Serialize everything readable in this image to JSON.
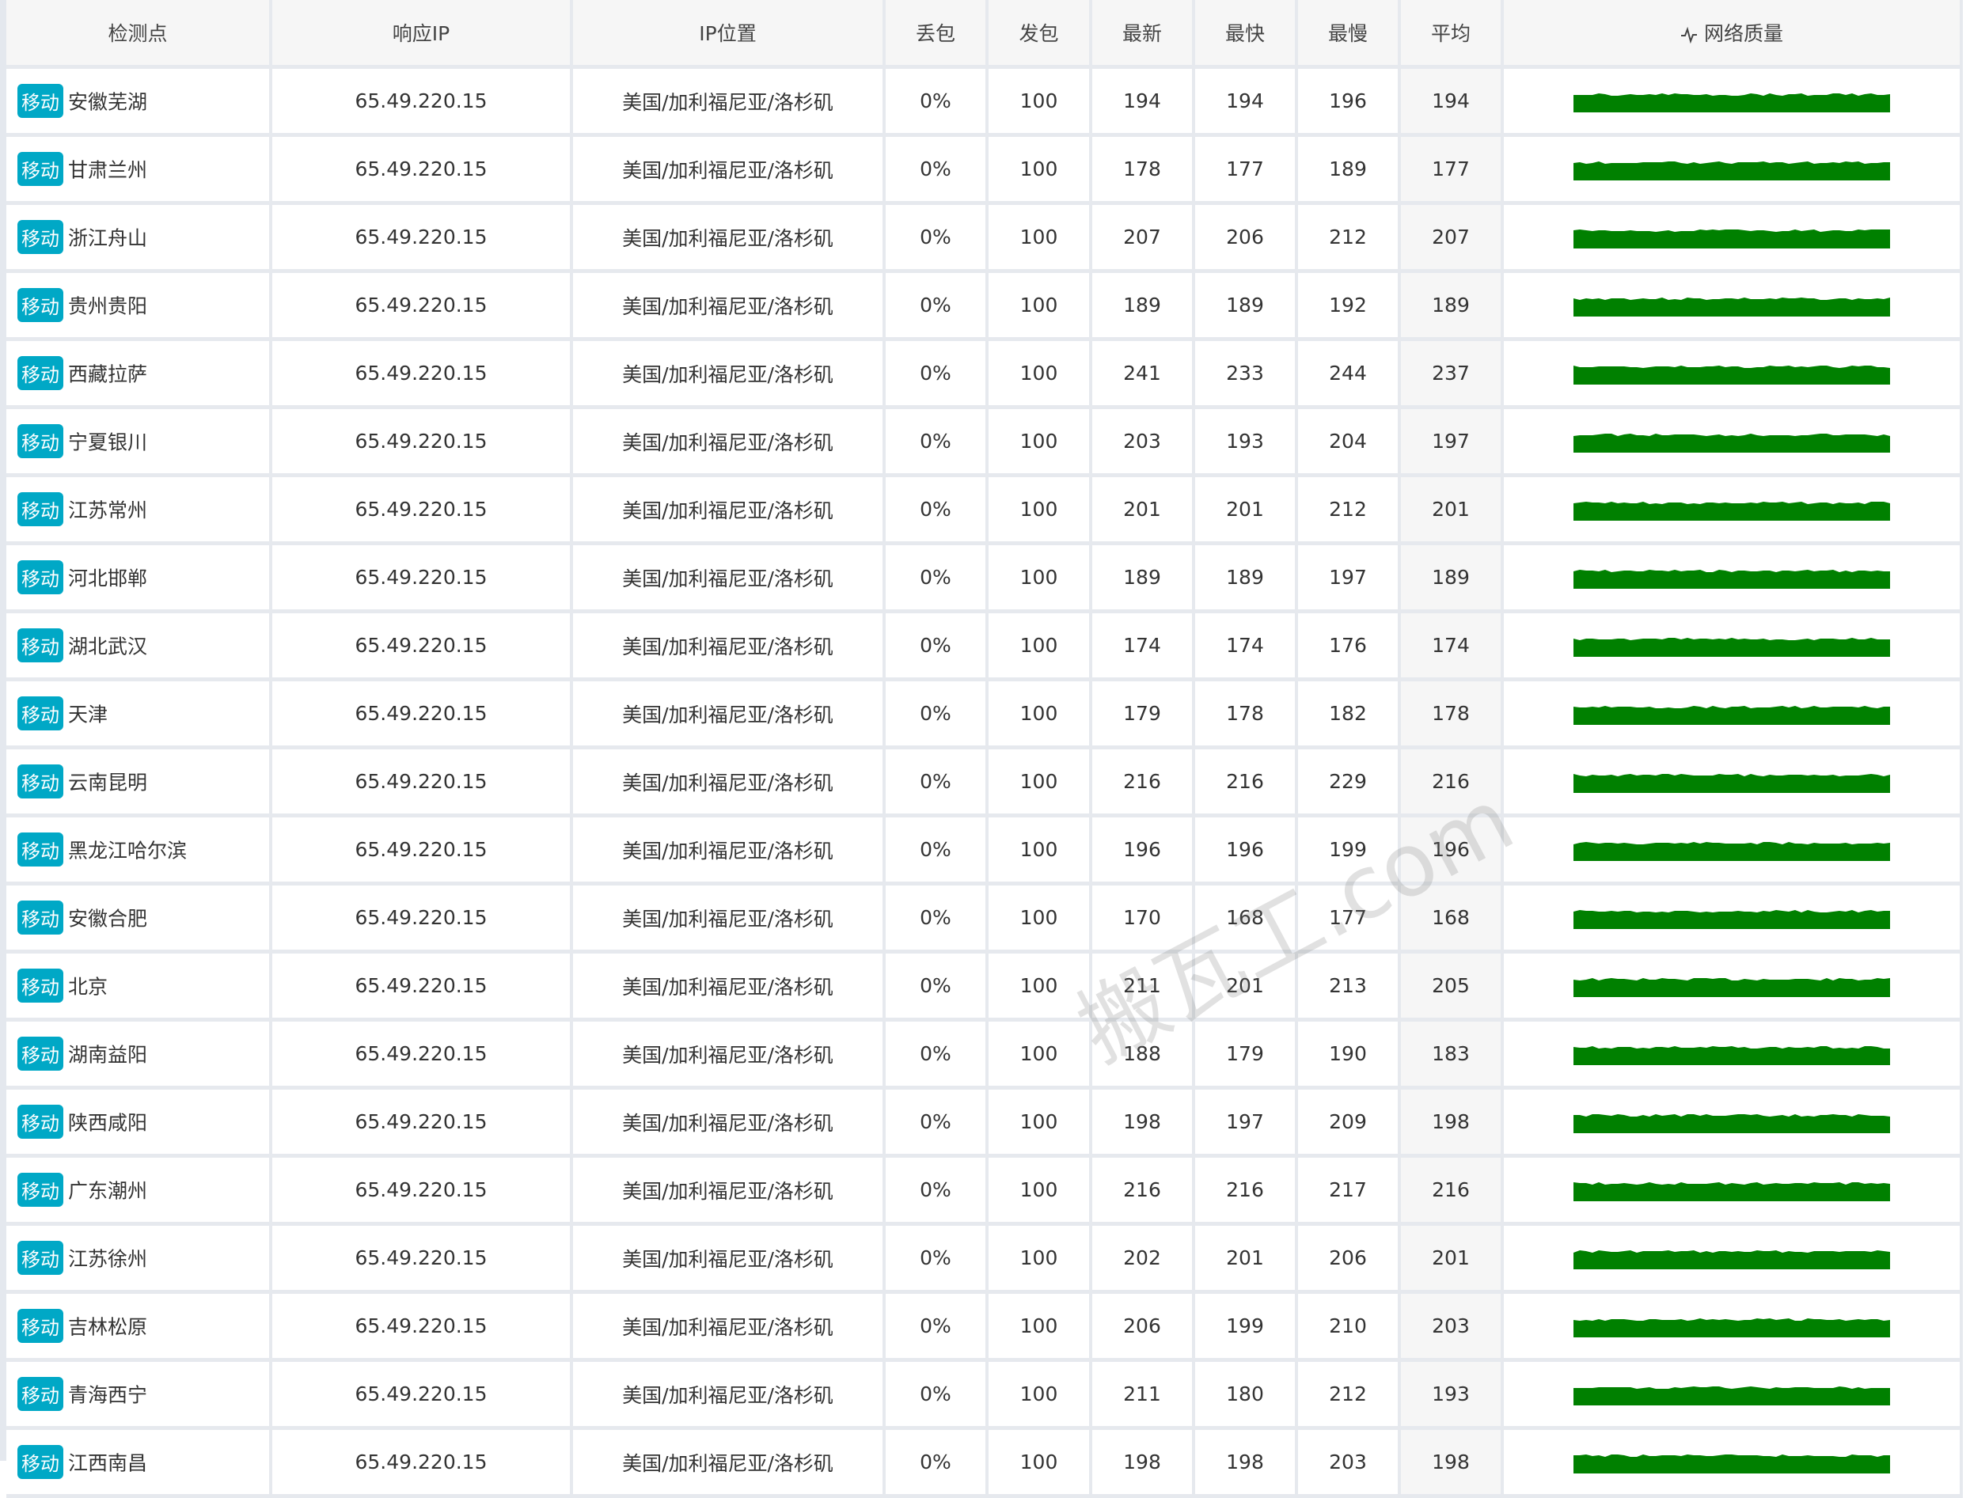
{
  "headers": [
    "检测点",
    "响应IP",
    "IP位置",
    "丢包",
    "发包",
    "最新",
    "最快",
    "最慢",
    "平均",
    "网络质量"
  ],
  "quality_icon": "pulse-icon",
  "badge_color": "#00a8c6",
  "bar_color": "#008000",
  "watermark": "搬瓦工.com",
  "rows": [
    {
      "isp": "移动",
      "loc": "安徽芜湖",
      "ip": "65.49.220.15",
      "geo": "美国/加利福尼亚/洛杉矶",
      "loss": "0%",
      "sent": "100",
      "last": "194",
      "best": "194",
      "worst": "196",
      "avg": "194"
    },
    {
      "isp": "移动",
      "loc": "甘肃兰州",
      "ip": "65.49.220.15",
      "geo": "美国/加利福尼亚/洛杉矶",
      "loss": "0%",
      "sent": "100",
      "last": "178",
      "best": "177",
      "worst": "189",
      "avg": "177"
    },
    {
      "isp": "移动",
      "loc": "浙江舟山",
      "ip": "65.49.220.15",
      "geo": "美国/加利福尼亚/洛杉矶",
      "loss": "0%",
      "sent": "100",
      "last": "207",
      "best": "206",
      "worst": "212",
      "avg": "207"
    },
    {
      "isp": "移动",
      "loc": "贵州贵阳",
      "ip": "65.49.220.15",
      "geo": "美国/加利福尼亚/洛杉矶",
      "loss": "0%",
      "sent": "100",
      "last": "189",
      "best": "189",
      "worst": "192",
      "avg": "189"
    },
    {
      "isp": "移动",
      "loc": "西藏拉萨",
      "ip": "65.49.220.15",
      "geo": "美国/加利福尼亚/洛杉矶",
      "loss": "0%",
      "sent": "100",
      "last": "241",
      "best": "233",
      "worst": "244",
      "avg": "237"
    },
    {
      "isp": "移动",
      "loc": "宁夏银川",
      "ip": "65.49.220.15",
      "geo": "美国/加利福尼亚/洛杉矶",
      "loss": "0%",
      "sent": "100",
      "last": "203",
      "best": "193",
      "worst": "204",
      "avg": "197"
    },
    {
      "isp": "移动",
      "loc": "江苏常州",
      "ip": "65.49.220.15",
      "geo": "美国/加利福尼亚/洛杉矶",
      "loss": "0%",
      "sent": "100",
      "last": "201",
      "best": "201",
      "worst": "212",
      "avg": "201"
    },
    {
      "isp": "移动",
      "loc": "河北邯郸",
      "ip": "65.49.220.15",
      "geo": "美国/加利福尼亚/洛杉矶",
      "loss": "0%",
      "sent": "100",
      "last": "189",
      "best": "189",
      "worst": "197",
      "avg": "189"
    },
    {
      "isp": "移动",
      "loc": "湖北武汉",
      "ip": "65.49.220.15",
      "geo": "美国/加利福尼亚/洛杉矶",
      "loss": "0%",
      "sent": "100",
      "last": "174",
      "best": "174",
      "worst": "176",
      "avg": "174"
    },
    {
      "isp": "移动",
      "loc": "天津",
      "ip": "65.49.220.15",
      "geo": "美国/加利福尼亚/洛杉矶",
      "loss": "0%",
      "sent": "100",
      "last": "179",
      "best": "178",
      "worst": "182",
      "avg": "178"
    },
    {
      "isp": "移动",
      "loc": "云南昆明",
      "ip": "65.49.220.15",
      "geo": "美国/加利福尼亚/洛杉矶",
      "loss": "0%",
      "sent": "100",
      "last": "216",
      "best": "216",
      "worst": "229",
      "avg": "216"
    },
    {
      "isp": "移动",
      "loc": "黑龙江哈尔滨",
      "ip": "65.49.220.15",
      "geo": "美国/加利福尼亚/洛杉矶",
      "loss": "0%",
      "sent": "100",
      "last": "196",
      "best": "196",
      "worst": "199",
      "avg": "196"
    },
    {
      "isp": "移动",
      "loc": "安徽合肥",
      "ip": "65.49.220.15",
      "geo": "美国/加利福尼亚/洛杉矶",
      "loss": "0%",
      "sent": "100",
      "last": "170",
      "best": "168",
      "worst": "177",
      "avg": "168"
    },
    {
      "isp": "移动",
      "loc": "北京",
      "ip": "65.49.220.15",
      "geo": "美国/加利福尼亚/洛杉矶",
      "loss": "0%",
      "sent": "100",
      "last": "211",
      "best": "201",
      "worst": "213",
      "avg": "205"
    },
    {
      "isp": "移动",
      "loc": "湖南益阳",
      "ip": "65.49.220.15",
      "geo": "美国/加利福尼亚/洛杉矶",
      "loss": "0%",
      "sent": "100",
      "last": "188",
      "best": "179",
      "worst": "190",
      "avg": "183"
    },
    {
      "isp": "移动",
      "loc": "陕西咸阳",
      "ip": "65.49.220.15",
      "geo": "美国/加利福尼亚/洛杉矶",
      "loss": "0%",
      "sent": "100",
      "last": "198",
      "best": "197",
      "worst": "209",
      "avg": "198"
    },
    {
      "isp": "移动",
      "loc": "广东潮州",
      "ip": "65.49.220.15",
      "geo": "美国/加利福尼亚/洛杉矶",
      "loss": "0%",
      "sent": "100",
      "last": "216",
      "best": "216",
      "worst": "217",
      "avg": "216"
    },
    {
      "isp": "移动",
      "loc": "江苏徐州",
      "ip": "65.49.220.15",
      "geo": "美国/加利福尼亚/洛杉矶",
      "loss": "0%",
      "sent": "100",
      "last": "202",
      "best": "201",
      "worst": "206",
      "avg": "201"
    },
    {
      "isp": "移动",
      "loc": "吉林松原",
      "ip": "65.49.220.15",
      "geo": "美国/加利福尼亚/洛杉矶",
      "loss": "0%",
      "sent": "100",
      "last": "206",
      "best": "199",
      "worst": "210",
      "avg": "203"
    },
    {
      "isp": "移动",
      "loc": "青海西宁",
      "ip": "65.49.220.15",
      "geo": "美国/加利福尼亚/洛杉矶",
      "loss": "0%",
      "sent": "100",
      "last": "211",
      "best": "180",
      "worst": "212",
      "avg": "193"
    },
    {
      "isp": "移动",
      "loc": "江西南昌",
      "ip": "65.49.220.15",
      "geo": "美国/加利福尼亚/洛杉矶",
      "loss": "0%",
      "sent": "100",
      "last": "198",
      "best": "198",
      "worst": "203",
      "avg": "198"
    }
  ]
}
